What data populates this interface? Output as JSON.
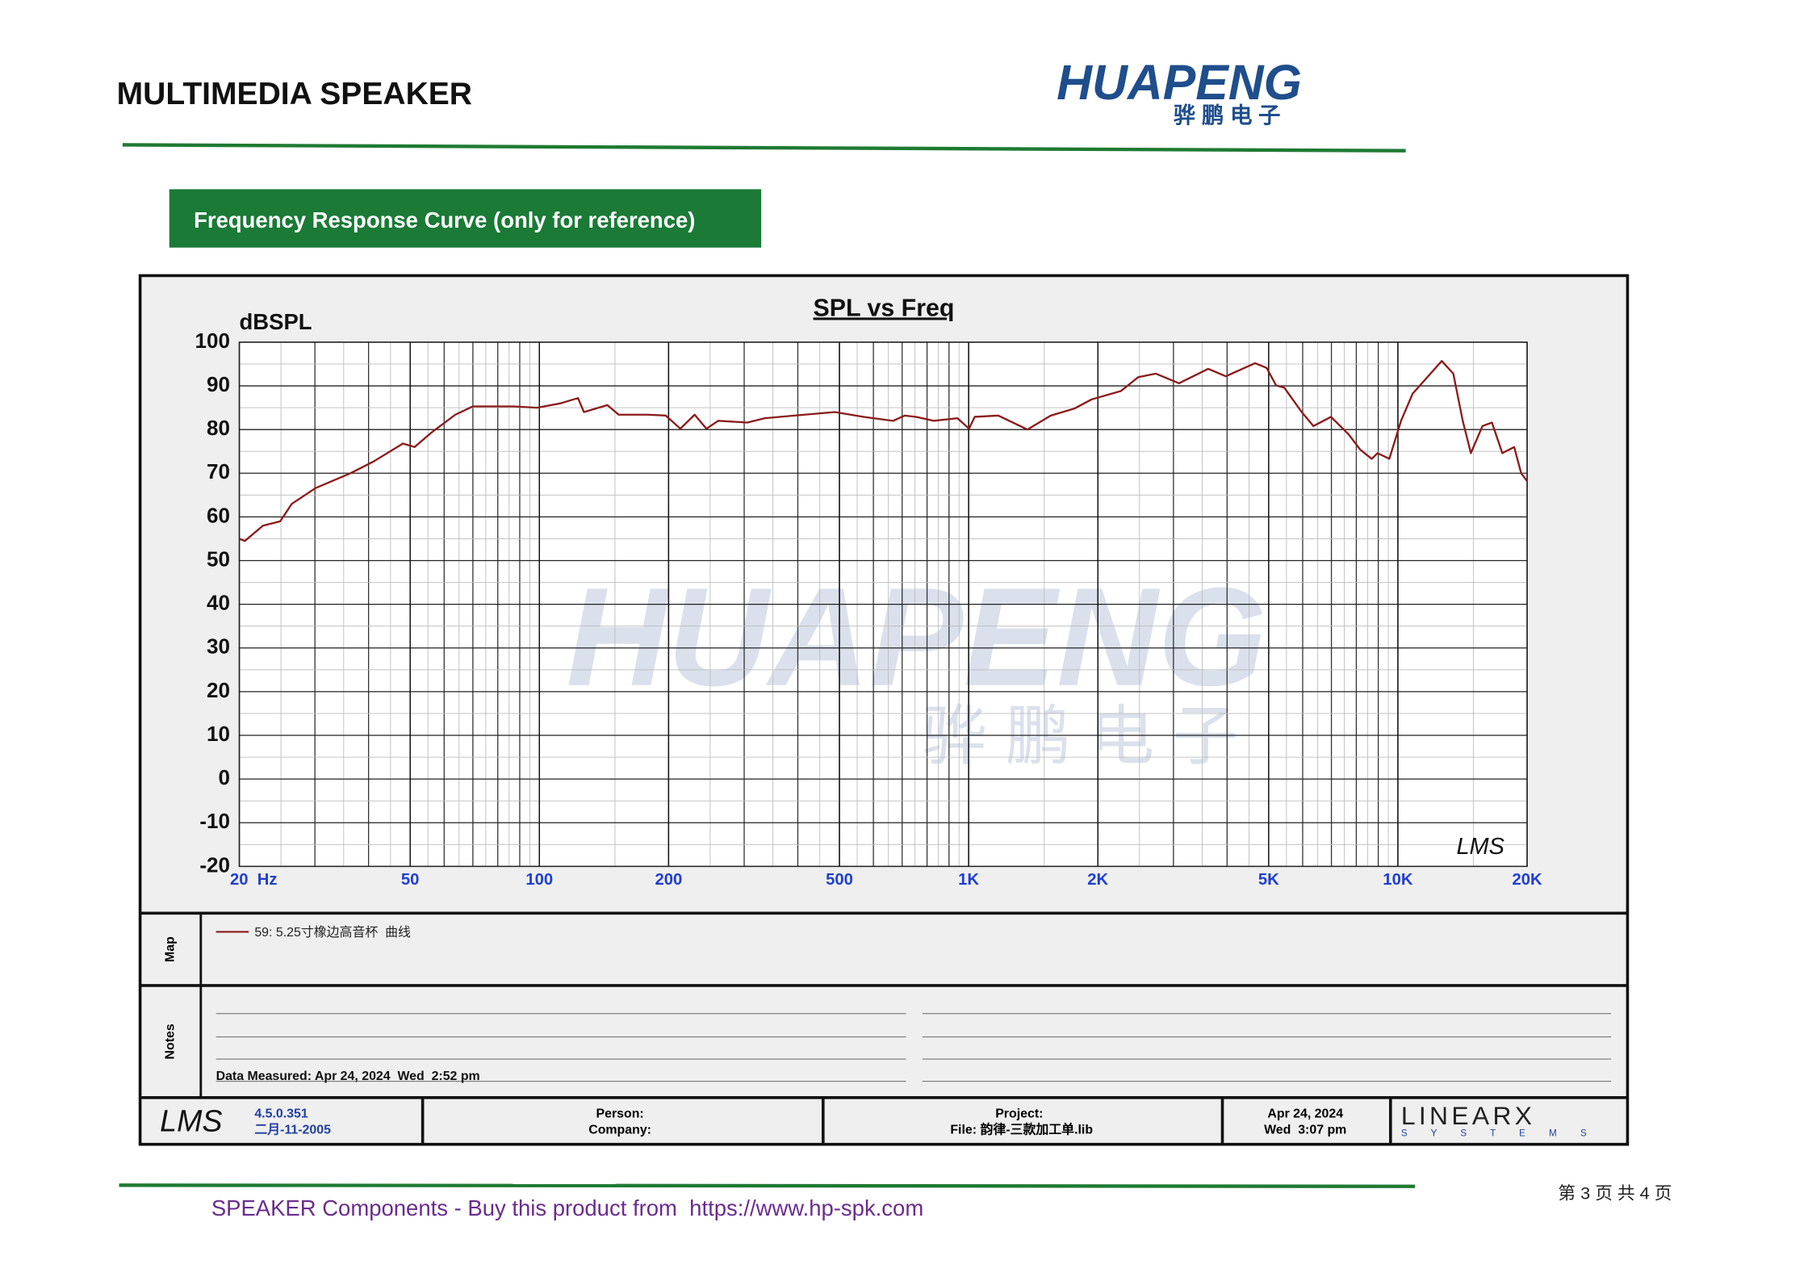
{
  "header": {
    "title": "MULTIMEDIA SPEAKER",
    "logo": "HUAPENG",
    "logo_cn": "骅 鹏 电 子"
  },
  "section_title": "Frequency Response Curve (only for reference)",
  "chart_data": {
    "type": "line",
    "title": "SPL vs Freq",
    "y_label": "dBSPL",
    "watermark": "HUAPENG",
    "watermark_cn": "骅 鹏 电 子",
    "brand_mark": "LMS",
    "x": [
      20,
      20.6,
      22.7,
      24.9,
      26.5,
      30.1,
      36.3,
      41.1,
      48.1,
      51.2,
      56.2,
      63.7,
      70,
      87.1,
      98.7,
      112,
      123,
      127,
      144,
      153,
      179,
      197,
      213,
      230,
      245,
      261,
      305,
      335,
      392,
      488,
      570,
      667,
      710,
      755,
      830,
      942,
      1002,
      1033,
      1172,
      1371,
      1553,
      1763,
      1934,
      2261,
      2484,
      2729,
      3091,
      3615,
      3974,
      4648,
      4946,
      5203,
      5435,
      5970,
      6356,
      6985,
      7677,
      8170,
      8690,
      8970,
      9550,
      10170,
      10820,
      12650,
      13460,
      14160,
      14790,
      15740,
      16560,
      17510,
      18660,
      19370,
      20000
    ],
    "series": [
      {
        "name": "59: 5.25寸橡边高音杯  曲线",
        "color": "#8b1a1a",
        "values": [
          55,
          54.5,
          58,
          59,
          63,
          66.6,
          70,
          72.7,
          76.8,
          76,
          79.4,
          83.4,
          85.3,
          85.3,
          85,
          86,
          87.2,
          84,
          85.6,
          83.4,
          83.4,
          83.2,
          80.2,
          83.4,
          80.2,
          82,
          81.6,
          82.6,
          83.2,
          84,
          82.9,
          82,
          83.2,
          82.9,
          82,
          82.6,
          80.2,
          82.9,
          83.2,
          80,
          83.2,
          84.8,
          86.9,
          88.8,
          92,
          92.8,
          90.6,
          93.9,
          92.2,
          95.2,
          94.1,
          90.1,
          89.6,
          84,
          80.8,
          82.9,
          78.9,
          75.4,
          73.3,
          74.6,
          73.3,
          82,
          88.2,
          95.7,
          92.8,
          82,
          74.6,
          80.8,
          81.6,
          74.6,
          76,
          70,
          68.2
        ]
      }
    ],
    "xlim": [
      20,
      20000
    ],
    "ylim": [
      -20,
      100
    ],
    "log_x": true,
    "grid": true,
    "xticks": [
      {
        "value": 20,
        "label": "20  Hz"
      },
      50,
      100,
      200,
      500,
      {
        "value": 1000,
        "label": "1K"
      },
      {
        "value": 2000,
        "label": "2K"
      },
      {
        "value": 5000,
        "label": "5K"
      },
      {
        "value": 10000,
        "label": "10K"
      },
      {
        "value": 20000,
        "label": "20K"
      }
    ],
    "yticks": [
      -20,
      -10,
      0,
      10,
      20,
      30,
      40,
      50,
      60,
      70,
      80,
      90,
      100
    ]
  },
  "map_label": "Map",
  "notes_label": "Notes",
  "notes_measured": "Data Measured: Apr 24, 2024  Wed  2:52 pm",
  "info_bar": {
    "lms": "LMS",
    "version": "4.5.0.351",
    "version_date": "二月-11-2005",
    "person": "Person:",
    "company": "Company:",
    "project": "Project:",
    "file": "File: 韵律-三款加工单.lib",
    "date": "Apr 24, 2024",
    "time": "Wed  3:07 pm",
    "brand": "LINEARX",
    "brand_sub": "S Y S T E M S"
  },
  "footer": {
    "text": "SPEAKER Components - Buy this product from  https://www.hp-spk.com",
    "page": "第 3 页 共 4 页"
  }
}
